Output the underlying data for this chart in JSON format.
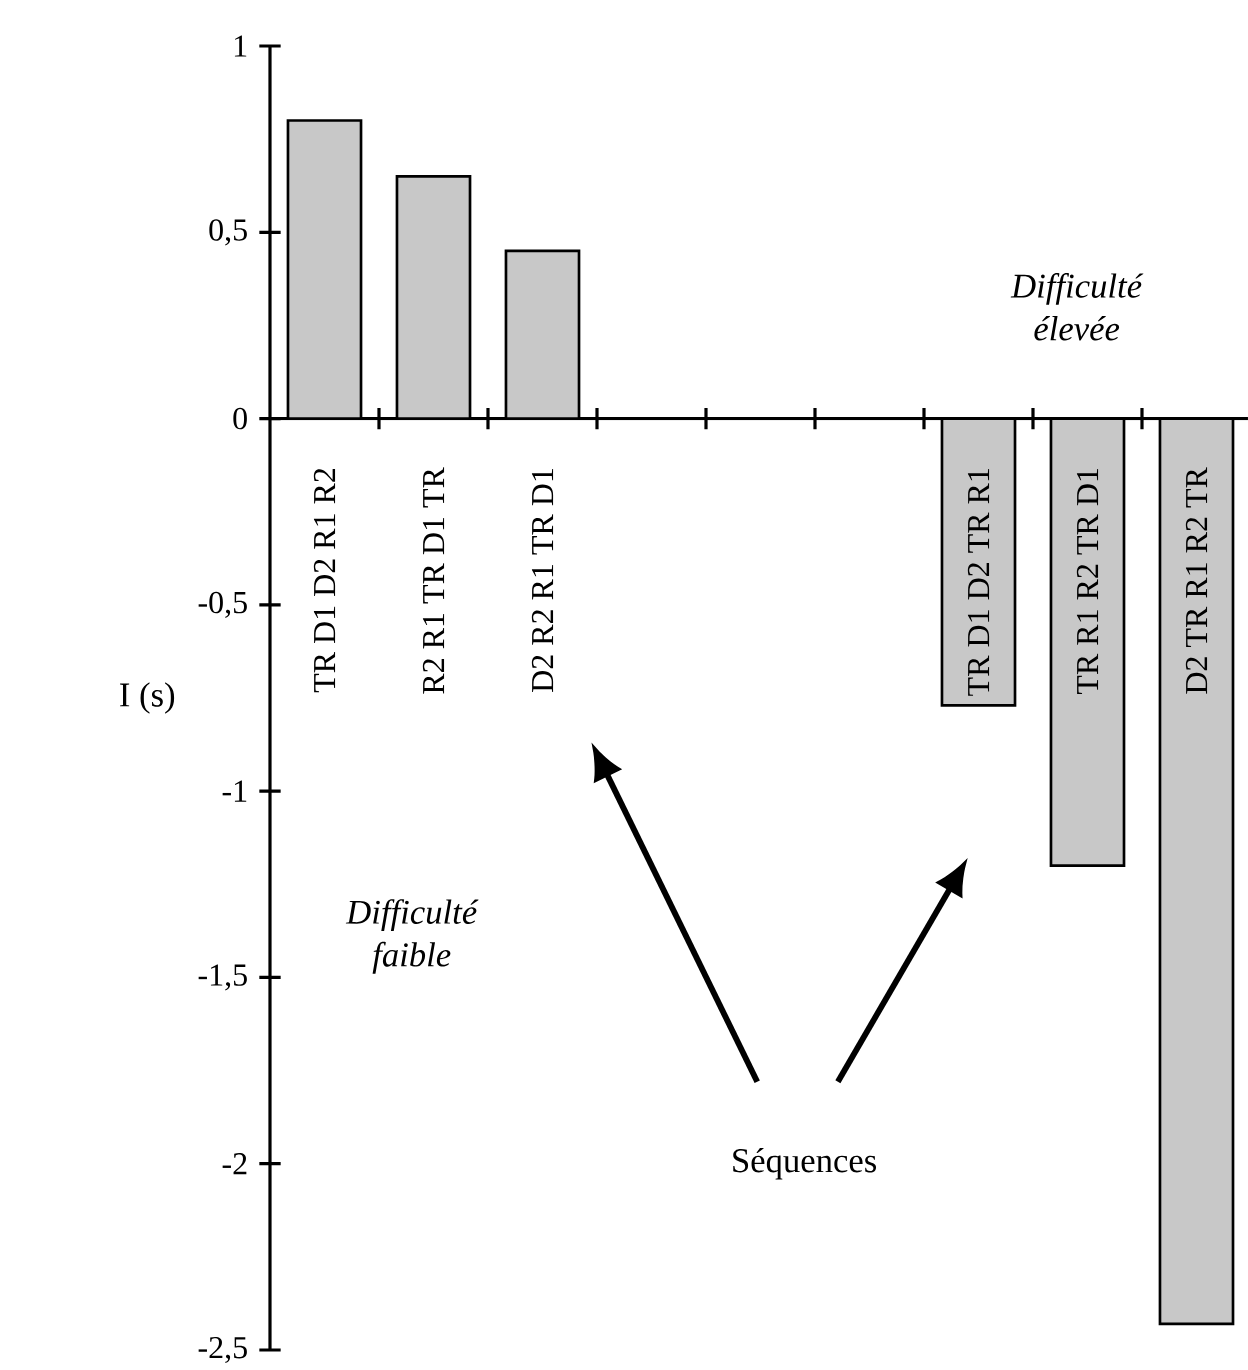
{
  "chart_data": {
    "type": "bar",
    "ylabel": "I (s)",
    "categories": [
      "TR D1 D2 R1 R2",
      "R2 R1 TR D1 TR",
      "D2 R2 R1 TR D1",
      null,
      null,
      null,
      "TR D1 D2 TR R1",
      "TR R1 R2 TR D1",
      "D2 TR R1 R2 TR"
    ],
    "values": [
      0.8,
      0.65,
      0.45,
      null,
      null,
      null,
      -0.77,
      -1.2,
      -2.43
    ],
    "color": "#c8c8c8",
    "ylim": [
      -2.5,
      1
    ],
    "yticks": [
      1,
      {
        "value": 0.5,
        "label": "0,5"
      },
      0,
      {
        "value": -0.5,
        "label": "-0,5"
      },
      -1,
      {
        "value": -1.5,
        "label": "-1,5"
      },
      -2,
      {
        "value": -2.5,
        "label": "-2,5"
      }
    ],
    "grid": false,
    "annotations": [
      "Difficulté élevée",
      "Difficulté faible",
      "Séquences"
    ]
  }
}
